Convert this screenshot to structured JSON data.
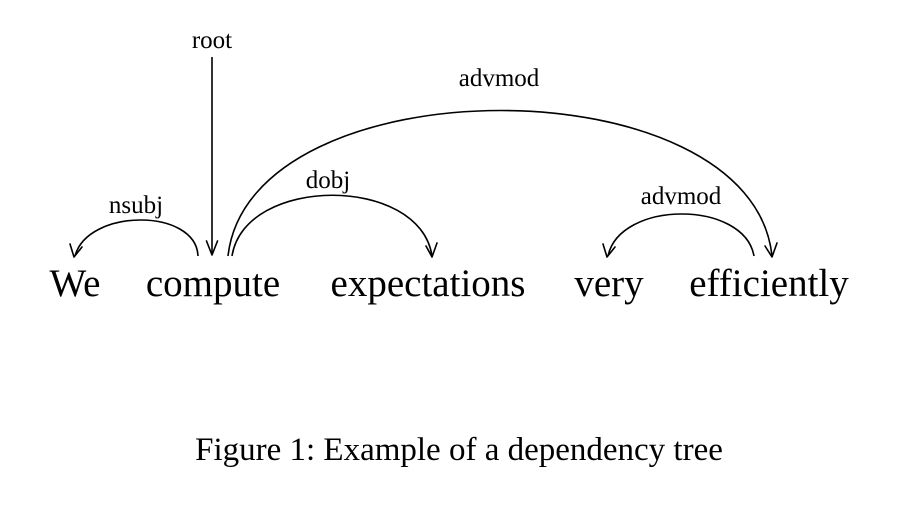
{
  "diagram": {
    "words": [
      "We",
      "compute",
      "expectations",
      "very",
      "efficiently"
    ],
    "labels": {
      "root": "root",
      "nsubj": "nsubj",
      "dobj": "dobj",
      "advmod_long": "advmod",
      "advmod_short": "advmod"
    }
  },
  "caption": "Figure 1: Example of a dependency tree"
}
